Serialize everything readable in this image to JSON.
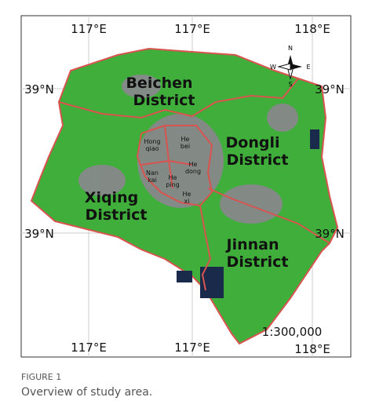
{
  "map": {
    "top_longitudes": [
      "117°E",
      "117°E",
      "118°E"
    ],
    "bottom_longitudes": [
      "117°E",
      "117°E",
      "118°E"
    ],
    "upper_latitudes": [
      "39°N",
      "39°N"
    ],
    "lower_latitudes": [
      "39°N",
      "39°N"
    ],
    "districts": [
      {
        "lines": [
          "Beichen",
          "District"
        ]
      },
      {
        "lines": [
          "Dongli",
          "District"
        ]
      },
      {
        "lines": [
          "Xiqing",
          "District"
        ]
      },
      {
        "lines": [
          "Jinnan",
          "District"
        ]
      }
    ],
    "urban_districts": [
      {
        "lines": [
          "Hong",
          "qiao"
        ]
      },
      {
        "lines": [
          "He",
          "bei"
        ]
      },
      {
        "lines": [
          "He",
          "dong"
        ]
      },
      {
        "lines": [
          "Nan",
          "kai"
        ]
      },
      {
        "lines": [
          "He",
          "ping"
        ]
      },
      {
        "lines": [
          "He",
          "xi"
        ]
      }
    ],
    "scale": "1:300,000",
    "compass": {
      "n": "N",
      "s": "S",
      "e": "E",
      "w": "W"
    }
  },
  "caption": {
    "label": "FIGURE 1",
    "text": "Overview of study area."
  }
}
